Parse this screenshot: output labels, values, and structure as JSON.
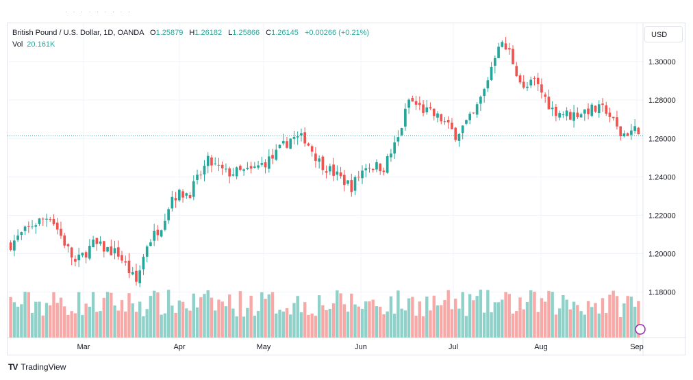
{
  "legend": {
    "symbol": "British Pound / U.S. Dollar, 1D, OANDA",
    "open_label": "O",
    "open": "1.25879",
    "high_label": "H",
    "high": "1.26182",
    "low_label": "L",
    "low": "1.25866",
    "close_label": "C",
    "close": "1.26145",
    "change": "+0.00266 (+0.21%)",
    "vol_label": "Vol",
    "vol_value": "20.161K"
  },
  "currency_button": "USD",
  "branding": {
    "name": "TradingView",
    "logo": "TV"
  },
  "colors": {
    "up": "#26a69a",
    "down": "#ef5350",
    "volume_up": "#8fd1c9",
    "volume_down": "#f7a9a7",
    "last_price_line": "#26a69a",
    "grid": "#f0f3fa"
  },
  "chart_data": {
    "type": "candlestick",
    "symbol": "GBP/USD",
    "interval": "1D",
    "y_ticks": [
      "1.18000",
      "1.20000",
      "1.22000",
      "1.24000",
      "1.26000",
      "1.28000",
      "1.30000"
    ],
    "ylim": [
      1.168,
      1.322
    ],
    "x_ticks": [
      "Mar",
      "Apr",
      "May",
      "Jun",
      "Jul",
      "Aug",
      "Sep"
    ],
    "last_price": 1.26145,
    "grid": true,
    "anchors": [
      {
        "d": 0,
        "p": 1.205
      },
      {
        "d": 6,
        "p": 1.215
      },
      {
        "d": 11,
        "p": 1.22
      },
      {
        "d": 18,
        "p": 1.195
      },
      {
        "d": 23,
        "p": 1.205
      },
      {
        "d": 30,
        "p": 1.2
      },
      {
        "d": 35,
        "p": 1.185
      },
      {
        "d": 38,
        "p": 1.205
      },
      {
        "d": 42,
        "p": 1.215
      },
      {
        "d": 45,
        "p": 1.23
      },
      {
        "d": 50,
        "p": 1.232
      },
      {
        "d": 55,
        "p": 1.248
      },
      {
        "d": 60,
        "p": 1.242
      },
      {
        "d": 67,
        "p": 1.243
      },
      {
        "d": 73,
        "p": 1.25
      },
      {
        "d": 78,
        "p": 1.26
      },
      {
        "d": 82,
        "p": 1.26
      },
      {
        "d": 86,
        "p": 1.248
      },
      {
        "d": 90,
        "p": 1.242
      },
      {
        "d": 95,
        "p": 1.235
      },
      {
        "d": 99,
        "p": 1.246
      },
      {
        "d": 104,
        "p": 1.245
      },
      {
        "d": 108,
        "p": 1.26
      },
      {
        "d": 111,
        "p": 1.28
      },
      {
        "d": 115,
        "p": 1.275
      },
      {
        "d": 120,
        "p": 1.27
      },
      {
        "d": 124,
        "p": 1.262
      },
      {
        "d": 129,
        "p": 1.272
      },
      {
        "d": 132,
        "p": 1.285
      },
      {
        "d": 136,
        "p": 1.31
      },
      {
        "d": 139,
        "p": 1.305
      },
      {
        "d": 143,
        "p": 1.285
      },
      {
        "d": 146,
        "p": 1.29
      },
      {
        "d": 151,
        "p": 1.275
      },
      {
        "d": 156,
        "p": 1.272
      },
      {
        "d": 161,
        "p": 1.275
      },
      {
        "d": 166,
        "p": 1.275
      },
      {
        "d": 170,
        "p": 1.262
      },
      {
        "d": 175,
        "p": 1.265
      }
    ],
    "volume_note": "daily volume histogram, colored by candle direction"
  }
}
